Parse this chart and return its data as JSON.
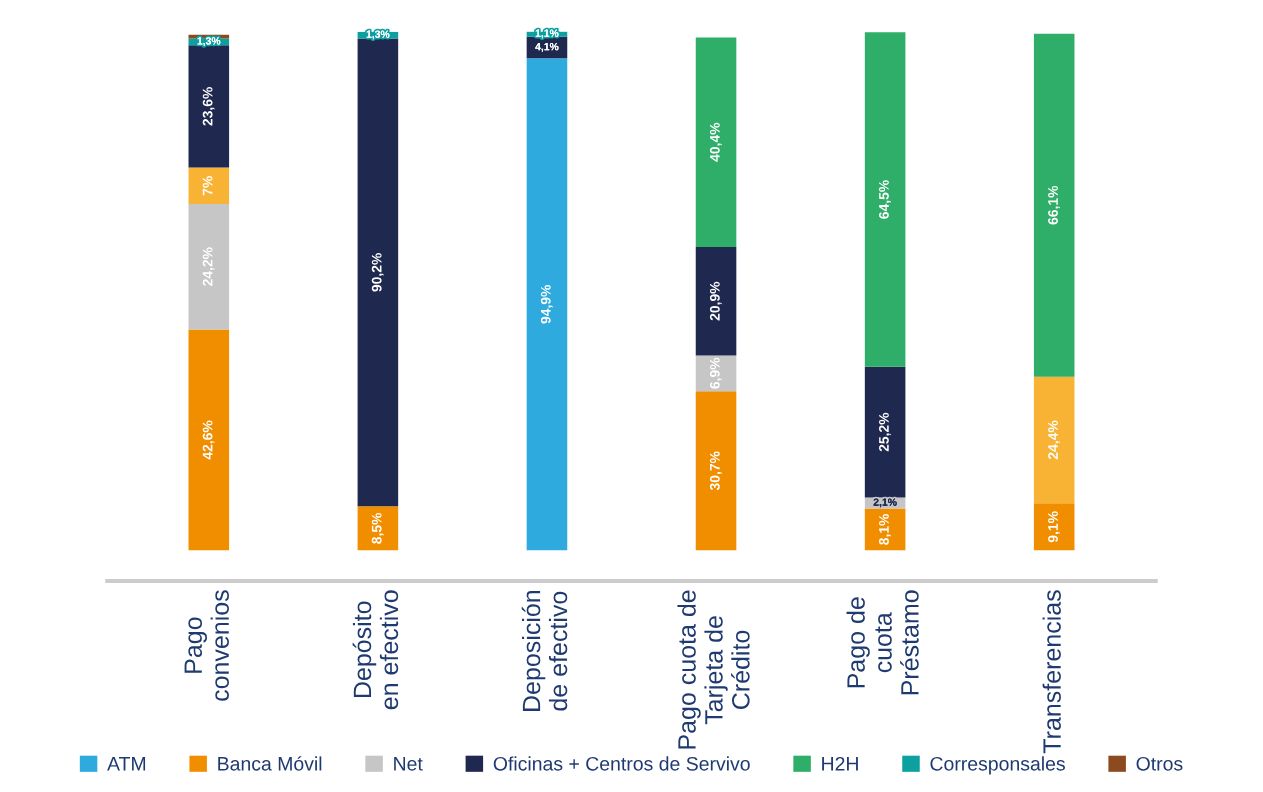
{
  "chart_data": {
    "type": "bar",
    "stacked": true,
    "categories": [
      "Pago\nconvenios",
      "Depósito\nen efectivo",
      "Deposición\nde efectivo",
      "Pago cuota de\nTarjeta de\nCrédito",
      "Pago de\ncuota\nPréstamo",
      "Transferencias"
    ],
    "ylim": [
      0,
      100
    ],
    "tick_labels": "x",
    "grid": false,
    "legend": "bottom",
    "data_labels": true,
    "series": [
      {
        "name": "ATM",
        "color": "#2eaadf",
        "values": [
          null,
          null,
          94.9,
          null,
          null,
          null
        ],
        "value_labels": [
          null,
          null,
          "94,9%",
          null,
          null,
          null
        ]
      },
      {
        "name": "Banca Móvil",
        "color": "#f18e00",
        "values": [
          42.6,
          8.5,
          null,
          30.7,
          8.1,
          9.1
        ],
        "value_labels": [
          "42,6%",
          "8,5%",
          null,
          "30,7%",
          "8,1%",
          "9,1%"
        ]
      },
      {
        "name": "Net",
        "color": "#c6c6c6",
        "values": [
          24.2,
          null,
          null,
          6.9,
          2.1,
          null
        ],
        "value_labels": [
          "24,2%",
          null,
          null,
          "6,9%",
          "2,1%",
          null
        ]
      },
      {
        "color": "#f8b234",
        "values": [
          7,
          null,
          null,
          null,
          null,
          24.4
        ],
        "value_labels": [
          "7%",
          null,
          null,
          null,
          null,
          "24,4%"
        ]
      },
      {
        "name": "Oficinas + Centros de Servivo",
        "color": "#1f284e",
        "values": [
          23.6,
          90.2,
          4.1,
          20.9,
          25.2,
          null
        ],
        "value_labels": [
          "23,6%",
          "90,2%",
          "4,1%",
          "20,9%",
          "25,2%",
          null
        ]
      },
      {
        "name": "H2H",
        "color": "#2eae68",
        "values": [
          null,
          null,
          null,
          40.4,
          64.5,
          66.1
        ],
        "value_labels": [
          null,
          null,
          null,
          "40,4%",
          "64,5%",
          "66,1%"
        ]
      },
      {
        "name": "Corresponsales",
        "color": "#0ca0a0",
        "values": [
          1.3,
          1.3,
          1.1,
          null,
          null,
          null
        ],
        "value_labels": [
          "1,3%",
          "1,3%",
          "1,1%",
          null,
          null,
          null
        ]
      },
      {
        "name": "Otros",
        "color": "#8b4b1f",
        "values": [
          0.7,
          null,
          null,
          null,
          null,
          null
        ],
        "value_labels": [
          null,
          null,
          null,
          null,
          null,
          null
        ]
      }
    ]
  }
}
